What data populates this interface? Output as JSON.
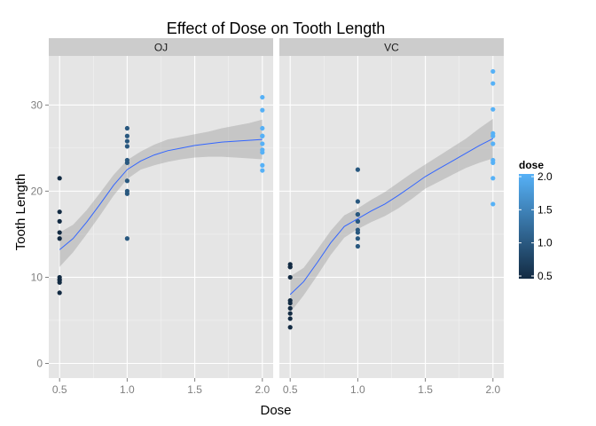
{
  "chart_data": {
    "type": "scatter",
    "title": "Effect of Dose on Tooth Length",
    "xlabel": "Dose",
    "ylabel": "Tooth Length",
    "xlim": [
      0.42,
      2.08
    ],
    "ylim": [
      -1.7,
      35.7
    ],
    "x_ticks": [
      0.5,
      1.0,
      1.5,
      2.0
    ],
    "x_tick_labels": [
      "0.5",
      "1.0",
      "1.5",
      "2.0"
    ],
    "y_ticks": [
      0,
      10,
      20,
      30
    ],
    "y_tick_labels": [
      "0",
      "10",
      "20",
      "30"
    ],
    "grid": true,
    "facets": [
      {
        "label": "OJ",
        "points": [
          {
            "x": 0.5,
            "y": 15.2
          },
          {
            "x": 0.5,
            "y": 21.5
          },
          {
            "x": 0.5,
            "y": 17.6
          },
          {
            "x": 0.5,
            "y": 9.7
          },
          {
            "x": 0.5,
            "y": 14.5
          },
          {
            "x": 0.5,
            "y": 10.0
          },
          {
            "x": 0.5,
            "y": 8.2
          },
          {
            "x": 0.5,
            "y": 9.4
          },
          {
            "x": 0.5,
            "y": 16.5
          },
          {
            "x": 0.5,
            "y": 9.7
          },
          {
            "x": 1.0,
            "y": 19.7
          },
          {
            "x": 1.0,
            "y": 23.3
          },
          {
            "x": 1.0,
            "y": 23.6
          },
          {
            "x": 1.0,
            "y": 26.4
          },
          {
            "x": 1.0,
            "y": 20.0
          },
          {
            "x": 1.0,
            "y": 25.2
          },
          {
            "x": 1.0,
            "y": 25.8
          },
          {
            "x": 1.0,
            "y": 21.2
          },
          {
            "x": 1.0,
            "y": 14.5
          },
          {
            "x": 1.0,
            "y": 27.3
          },
          {
            "x": 2.0,
            "y": 25.5
          },
          {
            "x": 2.0,
            "y": 26.4
          },
          {
            "x": 2.0,
            "y": 22.4
          },
          {
            "x": 2.0,
            "y": 24.5
          },
          {
            "x": 2.0,
            "y": 24.8
          },
          {
            "x": 2.0,
            "y": 30.9
          },
          {
            "x": 2.0,
            "y": 26.4
          },
          {
            "x": 2.0,
            "y": 27.3
          },
          {
            "x": 2.0,
            "y": 29.4
          },
          {
            "x": 2.0,
            "y": 23.0
          }
        ],
        "smooth": {
          "x": [
            0.5,
            0.6,
            0.7,
            0.8,
            0.9,
            1.0,
            1.1,
            1.2,
            1.3,
            1.4,
            1.5,
            1.6,
            1.7,
            1.8,
            1.9,
            2.0
          ],
          "y": [
            13.2,
            14.5,
            16.4,
            18.5,
            20.7,
            22.5,
            23.5,
            24.2,
            24.7,
            25.0,
            25.3,
            25.5,
            25.7,
            25.8,
            25.9,
            26.0
          ],
          "lower": [
            11.2,
            12.9,
            15.0,
            17.2,
            19.5,
            21.4,
            22.5,
            23.0,
            23.4,
            23.7,
            23.9,
            24.0,
            24.0,
            23.9,
            23.8,
            23.7
          ],
          "upper": [
            15.2,
            16.1,
            17.8,
            19.8,
            21.9,
            23.6,
            24.6,
            25.4,
            26.0,
            26.3,
            26.6,
            26.9,
            27.3,
            27.6,
            27.9,
            28.3
          ]
        }
      },
      {
        "label": "VC",
        "points": [
          {
            "x": 0.5,
            "y": 4.2
          },
          {
            "x": 0.5,
            "y": 11.5
          },
          {
            "x": 0.5,
            "y": 7.3
          },
          {
            "x": 0.5,
            "y": 5.8
          },
          {
            "x": 0.5,
            "y": 6.4
          },
          {
            "x": 0.5,
            "y": 10.0
          },
          {
            "x": 0.5,
            "y": 11.2
          },
          {
            "x": 0.5,
            "y": 11.2
          },
          {
            "x": 0.5,
            "y": 5.2
          },
          {
            "x": 0.5,
            "y": 7.0
          },
          {
            "x": 1.0,
            "y": 16.5
          },
          {
            "x": 1.0,
            "y": 16.5
          },
          {
            "x": 1.0,
            "y": 15.2
          },
          {
            "x": 1.0,
            "y": 17.3
          },
          {
            "x": 1.0,
            "y": 22.5
          },
          {
            "x": 1.0,
            "y": 17.3
          },
          {
            "x": 1.0,
            "y": 13.6
          },
          {
            "x": 1.0,
            "y": 14.5
          },
          {
            "x": 1.0,
            "y": 18.8
          },
          {
            "x": 1.0,
            "y": 15.5
          },
          {
            "x": 2.0,
            "y": 23.6
          },
          {
            "x": 2.0,
            "y": 18.5
          },
          {
            "x": 2.0,
            "y": 33.9
          },
          {
            "x": 2.0,
            "y": 25.5
          },
          {
            "x": 2.0,
            "y": 26.4
          },
          {
            "x": 2.0,
            "y": 32.5
          },
          {
            "x": 2.0,
            "y": 26.7
          },
          {
            "x": 2.0,
            "y": 21.5
          },
          {
            "x": 2.0,
            "y": 23.3
          },
          {
            "x": 2.0,
            "y": 29.5
          }
        ],
        "smooth": {
          "x": [
            0.5,
            0.6,
            0.7,
            0.8,
            0.9,
            1.0,
            1.1,
            1.2,
            1.3,
            1.4,
            1.5,
            1.6,
            1.7,
            1.8,
            1.9,
            2.0
          ],
          "y": [
            8.0,
            9.5,
            11.7,
            14.0,
            15.9,
            16.8,
            17.7,
            18.5,
            19.5,
            20.6,
            21.7,
            22.6,
            23.5,
            24.4,
            25.3,
            26.1
          ],
          "lower": [
            5.9,
            7.9,
            10.2,
            12.6,
            14.6,
            15.6,
            16.4,
            17.1,
            18.0,
            19.1,
            20.3,
            21.1,
            21.9,
            22.7,
            23.3,
            23.8
          ],
          "upper": [
            10.1,
            11.1,
            13.2,
            15.4,
            17.2,
            18.0,
            19.0,
            19.9,
            21.0,
            22.1,
            23.1,
            24.1,
            25.1,
            26.1,
            27.3,
            28.4
          ]
        }
      }
    ],
    "legend": {
      "title": "dose",
      "placement": "right",
      "range": [
        0.5,
        2.0
      ],
      "ticks": [
        0.5,
        1.0,
        1.5,
        2.0
      ],
      "tick_labels": [
        "0.5",
        "1.0",
        "1.5",
        "2.0"
      ],
      "color_low": "#132B43",
      "color_high": "#56B1F7"
    },
    "colors": {
      "panel_background": "#E5E5E5",
      "strip_background": "#CCCCCC",
      "grid_major": "#FFFFFF",
      "grid_minor": "#F2F2F2",
      "ribbon": "#999999",
      "smooth_line": "#3366FF"
    }
  }
}
